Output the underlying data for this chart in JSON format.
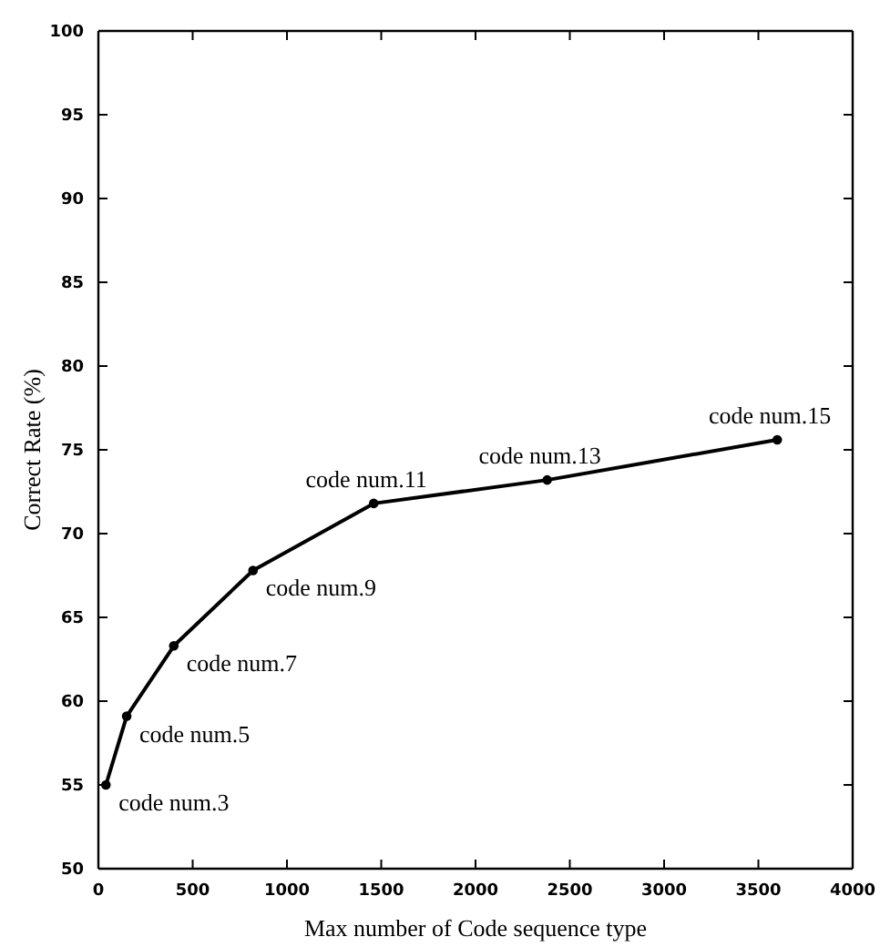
{
  "chart_data": {
    "type": "line",
    "xlabel": "Max number of Code sequence type",
    "ylabel": "Correct Rate (%)",
    "x": [
      40,
      150,
      400,
      820,
      1460,
      2380,
      3600
    ],
    "series": [
      {
        "color": "#000000",
        "values": [
          55,
          59.1,
          63.3,
          67.8,
          71.8,
          73.2,
          75.6
        ]
      }
    ],
    "xlim": [
      0,
      4000
    ],
    "xticks": [
      0,
      500,
      1000,
      1500,
      2000,
      2500,
      3000,
      3500,
      4000
    ],
    "ylim": [
      50,
      100
    ],
    "yticks": [
      50,
      55,
      60,
      65,
      70,
      75,
      80,
      85,
      90,
      95,
      100
    ],
    "grid": false,
    "marker": "circle",
    "line_style": "solid",
    "annotations": [
      {
        "text": "code num.3",
        "x": 40,
        "y": 55
      },
      {
        "text": "code num.5",
        "x": 150,
        "y": 59.1
      },
      {
        "text": "code num.7",
        "x": 400,
        "y": 63.3
      },
      {
        "text": "code num.9",
        "x": 820,
        "y": 67.8
      },
      {
        "text": "code num.11",
        "x": 1460,
        "y": 71.8
      },
      {
        "text": "code num.13",
        "x": 2380,
        "y": 73.2
      },
      {
        "text": "code num.15",
        "x": 3600,
        "y": 75.6
      }
    ]
  }
}
